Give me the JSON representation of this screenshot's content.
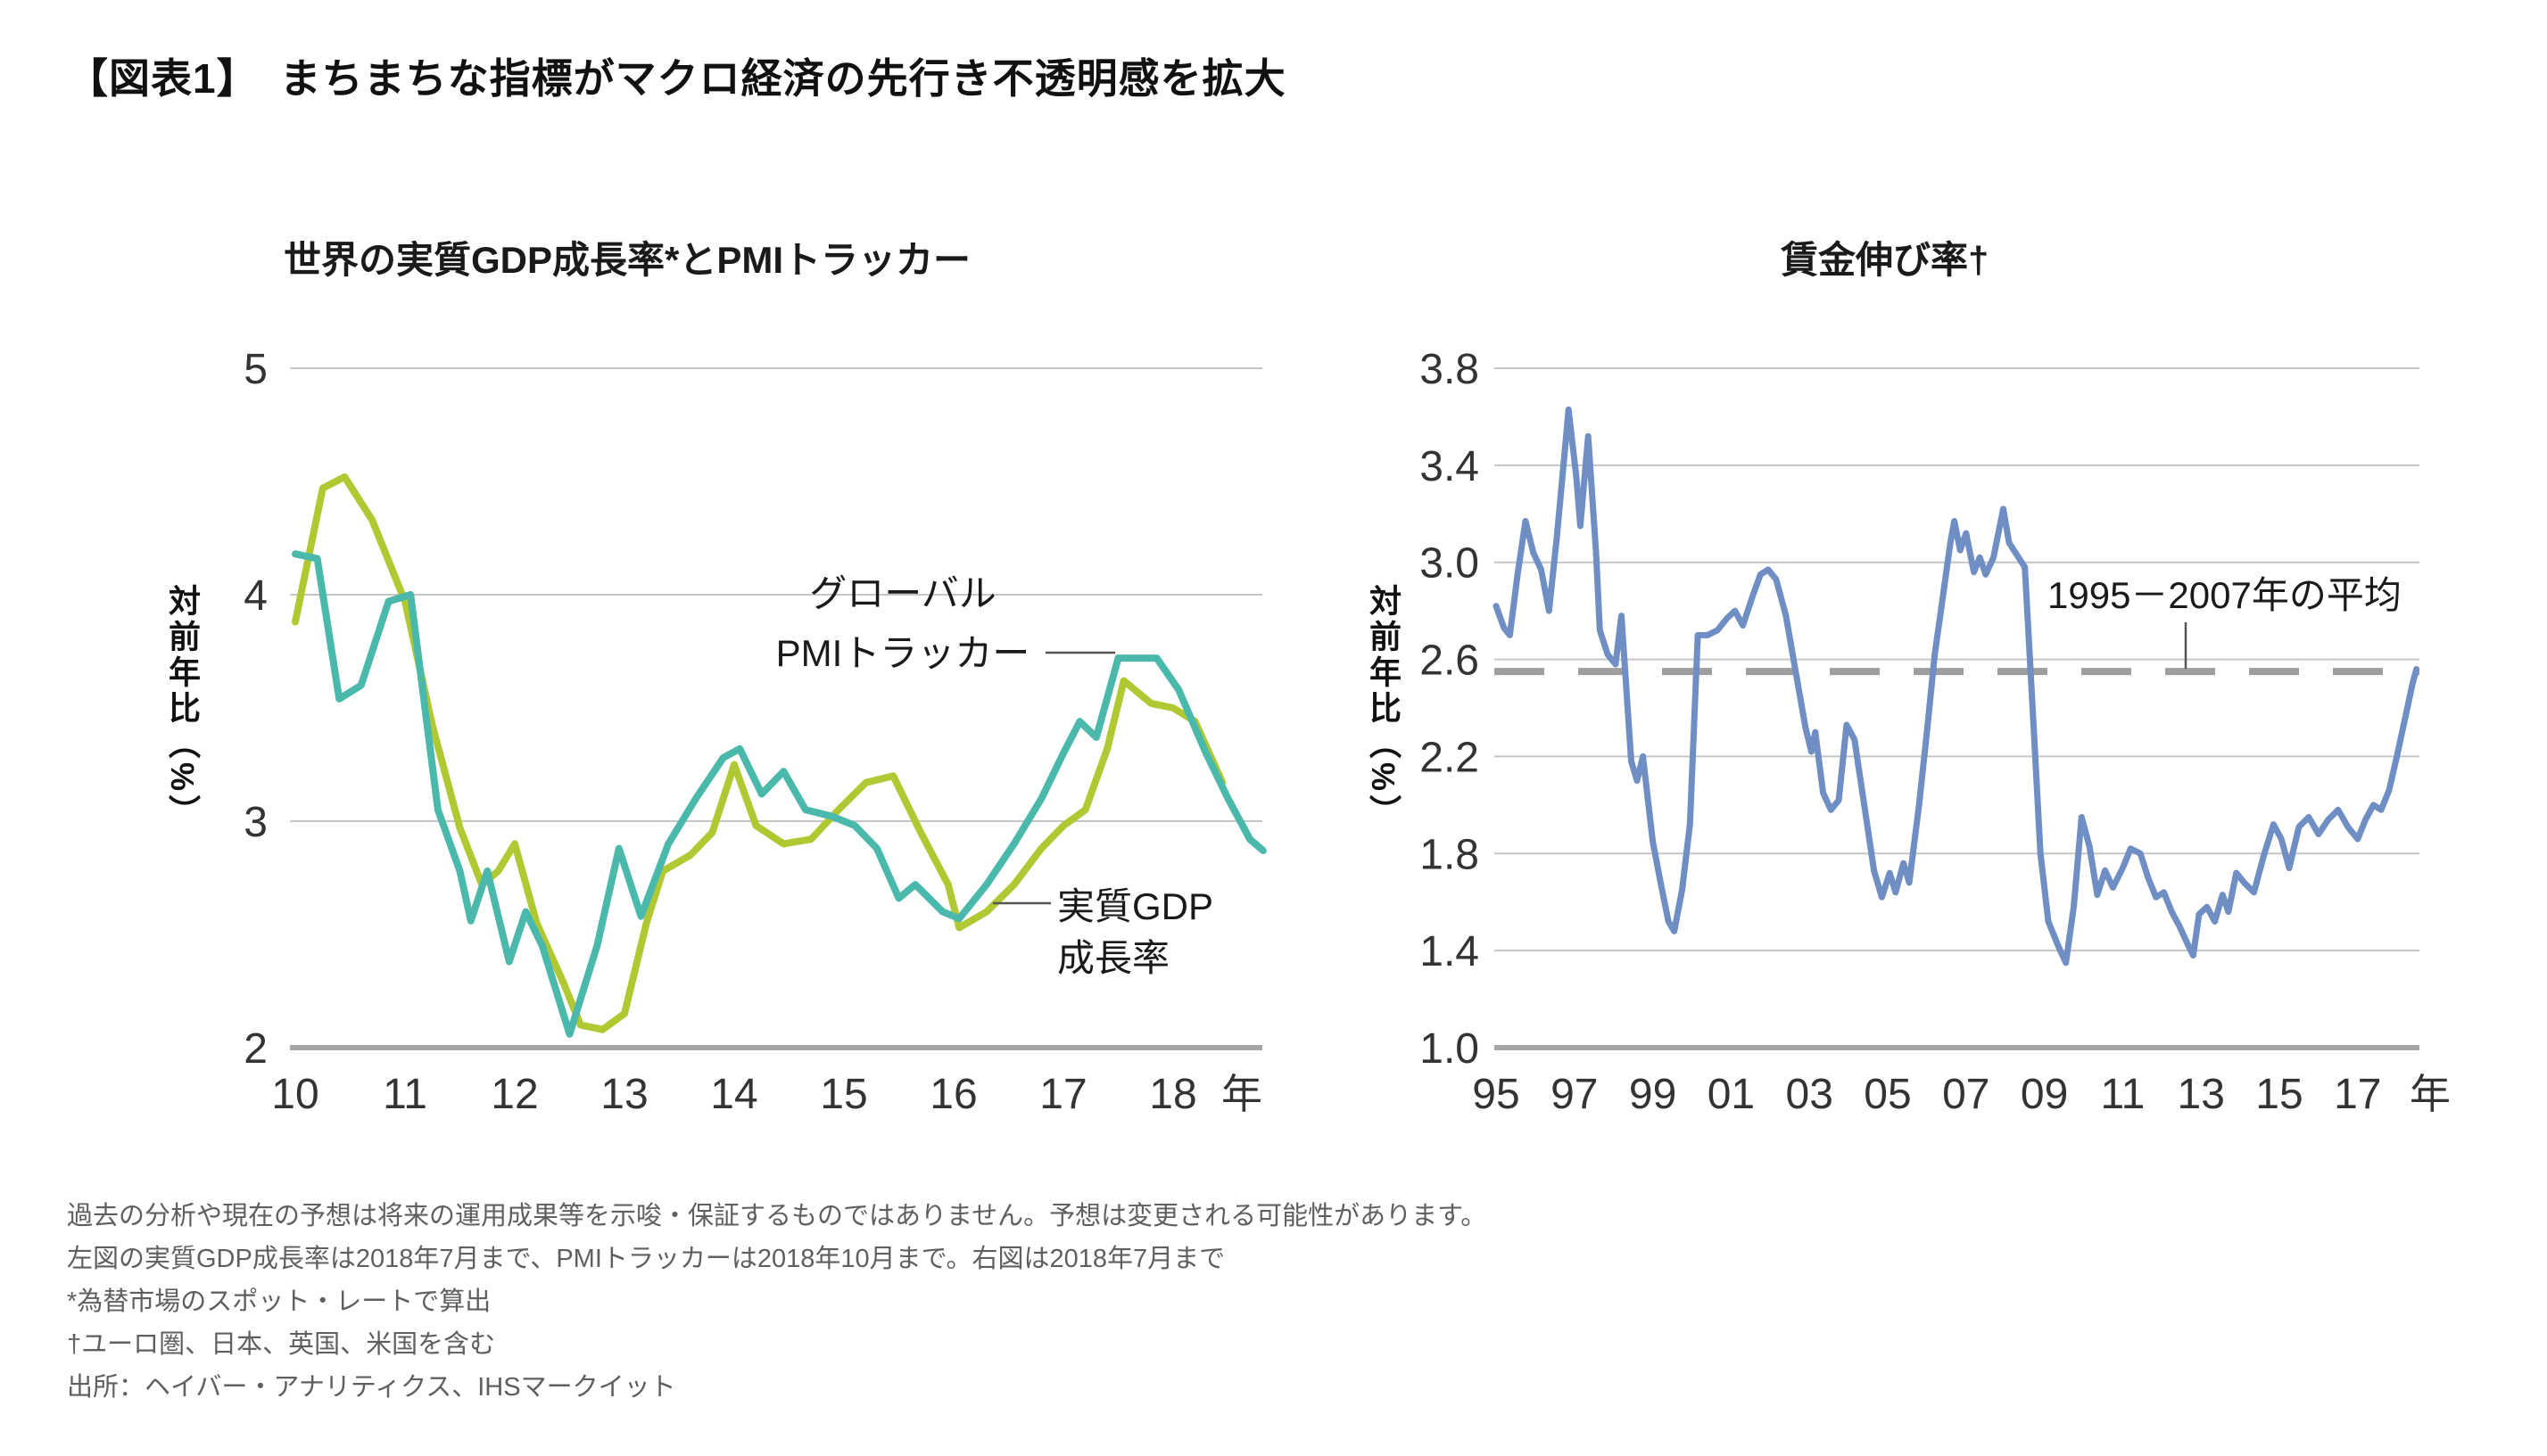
{
  "title": "【図表1】　まちまちな指標がマクロ経済の先行き不透明感を拡大",
  "footnotes": [
    "過去の分析や現在の予想は将来の運用成果等を示唆・保証するものではありません。予想は変更される可能性があります。",
    "左図の実質GDP成長率は2018年7月まで、PMIトラッカーは2018年10月まで。右図は2018年7月まで",
    "*為替市場のスポット・レートで算出",
    "†ユーロ圏、日本、英国、米国を含む",
    "出所：ヘイバー・アナリティクス、IHSマークイット"
  ],
  "chart_data": [
    {
      "id": "gdp-pmi-chart",
      "type": "line",
      "title": "世界の実質GDP成長率*とPMIトラッカー",
      "ylabel": "対前年比（%）",
      "xlabel": "年",
      "ylim": [
        2,
        5
      ],
      "grid": true,
      "y_ticks": [
        {
          "label": "5",
          "value": 5
        },
        {
          "label": "4",
          "value": 4
        },
        {
          "label": "3",
          "value": 3
        },
        {
          "label": "2",
          "value": 2
        }
      ],
      "x_ticks": [
        {
          "label": "10",
          "year": 10
        },
        {
          "label": "11",
          "year": 11
        },
        {
          "label": "12",
          "year": 12
        },
        {
          "label": "13",
          "year": 13
        },
        {
          "label": "14",
          "year": 14
        },
        {
          "label": "15",
          "year": 15
        },
        {
          "label": "16",
          "year": 16
        },
        {
          "label": "17",
          "year": 17
        },
        {
          "label": "18",
          "year": 18
        }
      ],
      "series": [
        {
          "name": "実質GDP成長率",
          "color": "#b2c832",
          "points": [
            [
              10,
              3.88
            ],
            [
              10.25,
              4.47
            ],
            [
              10.45,
              4.52
            ],
            [
              10.7,
              4.33
            ],
            [
              11,
              3.97
            ],
            [
              11.25,
              3.42
            ],
            [
              11.5,
              2.97
            ],
            [
              11.7,
              2.72
            ],
            [
              11.85,
              2.78
            ],
            [
              12,
              2.9
            ],
            [
              12.2,
              2.55
            ],
            [
              12.45,
              2.28
            ],
            [
              12.6,
              2.1
            ],
            [
              12.8,
              2.08
            ],
            [
              13,
              2.15
            ],
            [
              13.2,
              2.55
            ],
            [
              13.35,
              2.78
            ],
            [
              13.6,
              2.85
            ],
            [
              13.8,
              2.95
            ],
            [
              14,
              3.25
            ],
            [
              14.2,
              2.98
            ],
            [
              14.45,
              2.9
            ],
            [
              14.7,
              2.92
            ],
            [
              14.95,
              3.05
            ],
            [
              15.2,
              3.17
            ],
            [
              15.45,
              3.2
            ],
            [
              15.7,
              2.95
            ],
            [
              15.95,
              2.72
            ],
            [
              16.05,
              2.53
            ],
            [
              16.3,
              2.6
            ],
            [
              16.55,
              2.72
            ],
            [
              16.8,
              2.88
            ],
            [
              17,
              2.98
            ],
            [
              17.2,
              3.05
            ],
            [
              17.4,
              3.32
            ],
            [
              17.55,
              3.62
            ],
            [
              17.8,
              3.52
            ],
            [
              18,
              3.5
            ],
            [
              18.2,
              3.44
            ],
            [
              18.45,
              3.17
            ]
          ]
        },
        {
          "name": "グローバルPMIトラッカー",
          "color": "#4ab9ac",
          "points": [
            [
              10,
              4.18
            ],
            [
              10.2,
              4.16
            ],
            [
              10.4,
              3.54
            ],
            [
              10.6,
              3.6
            ],
            [
              10.85,
              3.97
            ],
            [
              11.05,
              4
            ],
            [
              11.3,
              3.05
            ],
            [
              11.5,
              2.78
            ],
            [
              11.6,
              2.56
            ],
            [
              11.75,
              2.78
            ],
            [
              11.95,
              2.38
            ],
            [
              12.1,
              2.6
            ],
            [
              12.25,
              2.45
            ],
            [
              12.5,
              2.06
            ],
            [
              12.75,
              2.45
            ],
            [
              12.95,
              2.88
            ],
            [
              13.15,
              2.58
            ],
            [
              13.4,
              2.9
            ],
            [
              13.65,
              3.1
            ],
            [
              13.9,
              3.28
            ],
            [
              14.05,
              3.32
            ],
            [
              14.25,
              3.12
            ],
            [
              14.45,
              3.22
            ],
            [
              14.65,
              3.05
            ],
            [
              14.9,
              3.02
            ],
            [
              15.1,
              2.98
            ],
            [
              15.3,
              2.88
            ],
            [
              15.5,
              2.66
            ],
            [
              15.65,
              2.72
            ],
            [
              15.9,
              2.6
            ],
            [
              16.05,
              2.57
            ],
            [
              16.3,
              2.72
            ],
            [
              16.55,
              2.9
            ],
            [
              16.8,
              3.1
            ],
            [
              17,
              3.3
            ],
            [
              17.15,
              3.44
            ],
            [
              17.3,
              3.37
            ],
            [
              17.5,
              3.72
            ],
            [
              17.85,
              3.72
            ],
            [
              18.05,
              3.58
            ],
            [
              18.3,
              3.3
            ],
            [
              18.5,
              3.1
            ],
            [
              18.7,
              2.92
            ],
            [
              18.82,
              2.87
            ]
          ]
        }
      ],
      "annotations": [
        {
          "id": "pmi-label",
          "lines": [
            "グローバル",
            "PMIトラッカー"
          ]
        },
        {
          "id": "gdp-label",
          "lines": [
            "実質GDP",
            "成長率"
          ]
        }
      ]
    },
    {
      "id": "wage-chart",
      "type": "line",
      "title": "賃金伸び率†",
      "ylabel": "対前年比（%）",
      "xlabel": "年",
      "ylim": [
        1.0,
        3.8
      ],
      "grid": true,
      "y_ticks": [
        {
          "label": "3.8",
          "value": 3.8
        },
        {
          "label": "3.4",
          "value": 3.4
        },
        {
          "label": "3.0",
          "value": 3.0
        },
        {
          "label": "2.6",
          "value": 2.6
        },
        {
          "label": "2.2",
          "value": 2.2
        },
        {
          "label": "1.8",
          "value": 1.8
        },
        {
          "label": "1.4",
          "value": 1.4
        },
        {
          "label": "1.0",
          "value": 1.0
        }
      ],
      "x_ticks": [
        {
          "label": "95",
          "year": 95
        },
        {
          "label": "97",
          "year": 97
        },
        {
          "label": "99",
          "year": 99
        },
        {
          "label": "01",
          "year": 101
        },
        {
          "label": "03",
          "year": 103
        },
        {
          "label": "05",
          "year": 105
        },
        {
          "label": "07",
          "year": 107
        },
        {
          "label": "09",
          "year": 109
        },
        {
          "label": "11",
          "year": 111
        },
        {
          "label": "13",
          "year": 113
        },
        {
          "label": "15",
          "year": 115
        },
        {
          "label": "17",
          "year": 117
        }
      ],
      "avg_line": {
        "value": 2.55,
        "label": "1995－2007年の平均",
        "color": "#9e9e9e"
      },
      "series": [
        {
          "name": "賃金伸び率",
          "color": "#6f8ec4",
          "points": [
            [
              95,
              2.82
            ],
            [
              95.2,
              2.73
            ],
            [
              95.35,
              2.7
            ],
            [
              95.55,
              2.95
            ],
            [
              95.75,
              3.17
            ],
            [
              95.95,
              3.04
            ],
            [
              96.15,
              2.97
            ],
            [
              96.35,
              2.8
            ],
            [
              96.55,
              3.1
            ],
            [
              96.75,
              3.45
            ],
            [
              96.85,
              3.63
            ],
            [
              97.05,
              3.35
            ],
            [
              97.15,
              3.15
            ],
            [
              97.35,
              3.52
            ],
            [
              97.55,
              3.05
            ],
            [
              97.65,
              2.72
            ],
            [
              97.85,
              2.62
            ],
            [
              98.05,
              2.58
            ],
            [
              98.2,
              2.78
            ],
            [
              98.45,
              2.18
            ],
            [
              98.6,
              2.1
            ],
            [
              98.75,
              2.2
            ],
            [
              99,
              1.85
            ],
            [
              99.2,
              1.68
            ],
            [
              99.4,
              1.52
            ],
            [
              99.55,
              1.48
            ],
            [
              99.75,
              1.65
            ],
            [
              99.95,
              1.92
            ],
            [
              100.15,
              2.7
            ],
            [
              100.4,
              2.7
            ],
            [
              100.65,
              2.72
            ],
            [
              100.9,
              2.77
            ],
            [
              101.1,
              2.8
            ],
            [
              101.3,
              2.74
            ],
            [
              101.55,
              2.86
            ],
            [
              101.75,
              2.95
            ],
            [
              101.95,
              2.97
            ],
            [
              102.15,
              2.93
            ],
            [
              102.4,
              2.78
            ],
            [
              102.65,
              2.55
            ],
            [
              102.9,
              2.32
            ],
            [
              103.05,
              2.22
            ],
            [
              103.15,
              2.3
            ],
            [
              103.35,
              2.05
            ],
            [
              103.55,
              1.98
            ],
            [
              103.75,
              2.02
            ],
            [
              103.95,
              2.33
            ],
            [
              104.15,
              2.27
            ],
            [
              104.4,
              2
            ],
            [
              104.65,
              1.73
            ],
            [
              104.85,
              1.62
            ],
            [
              105.05,
              1.72
            ],
            [
              105.2,
              1.64
            ],
            [
              105.4,
              1.76
            ],
            [
              105.55,
              1.68
            ],
            [
              105.8,
              2
            ],
            [
              106,
              2.3
            ],
            [
              106.2,
              2.62
            ],
            [
              106.4,
              2.85
            ],
            [
              106.6,
              3.08
            ],
            [
              106.7,
              3.17
            ],
            [
              106.85,
              3.05
            ],
            [
              107,
              3.12
            ],
            [
              107.2,
              2.96
            ],
            [
              107.35,
              3.02
            ],
            [
              107.5,
              2.95
            ],
            [
              107.7,
              3.02
            ],
            [
              107.95,
              3.22
            ],
            [
              108.1,
              3.08
            ],
            [
              108.3,
              3.03
            ],
            [
              108.5,
              2.98
            ],
            [
              108.7,
              2.4
            ],
            [
              108.9,
              1.8
            ],
            [
              109.1,
              1.52
            ],
            [
              109.35,
              1.42
            ],
            [
              109.55,
              1.35
            ],
            [
              109.75,
              1.58
            ],
            [
              109.95,
              1.95
            ],
            [
              110.15,
              1.83
            ],
            [
              110.35,
              1.63
            ],
            [
              110.55,
              1.73
            ],
            [
              110.75,
              1.66
            ],
            [
              111,
              1.74
            ],
            [
              111.2,
              1.82
            ],
            [
              111.45,
              1.8
            ],
            [
              111.65,
              1.7
            ],
            [
              111.85,
              1.62
            ],
            [
              112.05,
              1.64
            ],
            [
              112.25,
              1.56
            ],
            [
              112.45,
              1.5
            ],
            [
              112.65,
              1.43
            ],
            [
              112.8,
              1.38
            ],
            [
              112.95,
              1.55
            ],
            [
              113.15,
              1.58
            ],
            [
              113.35,
              1.52
            ],
            [
              113.55,
              1.63
            ],
            [
              113.7,
              1.56
            ],
            [
              113.9,
              1.72
            ],
            [
              114.1,
              1.68
            ],
            [
              114.35,
              1.64
            ],
            [
              114.6,
              1.79
            ],
            [
              114.85,
              1.92
            ],
            [
              115.05,
              1.86
            ],
            [
              115.25,
              1.74
            ],
            [
              115.5,
              1.91
            ],
            [
              115.75,
              1.95
            ],
            [
              116,
              1.88
            ],
            [
              116.25,
              1.94
            ],
            [
              116.5,
              1.98
            ],
            [
              116.75,
              1.91
            ],
            [
              117,
              1.86
            ],
            [
              117.2,
              1.94
            ],
            [
              117.4,
              2
            ],
            [
              117.6,
              1.98
            ],
            [
              117.8,
              2.06
            ],
            [
              118,
              2.2
            ],
            [
              118.2,
              2.35
            ],
            [
              118.4,
              2.5
            ],
            [
              118.5,
              2.56
            ]
          ]
        }
      ]
    }
  ],
  "style_colors": {
    "grid": "#c6c6c6",
    "axis": "#a6a6a6",
    "tick_text": "#333333",
    "leader": "#555555"
  }
}
